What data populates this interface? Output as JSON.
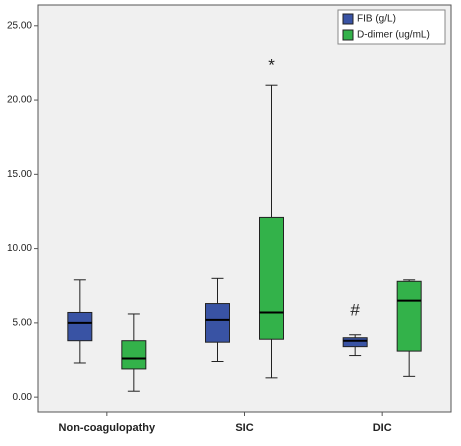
{
  "chart_data": {
    "type": "box",
    "categories": [
      "Non-coagulopathy",
      "SIC",
      "DIC"
    ],
    "series": [
      {
        "name": "FIB (g/L)",
        "color": "#3953a4",
        "boxes": [
          {
            "min": 2.3,
            "q1": 3.8,
            "median": 5.0,
            "q3": 5.7,
            "max": 7.9
          },
          {
            "min": 2.4,
            "q1": 3.7,
            "median": 5.2,
            "q3": 6.3,
            "max": 8.0
          },
          {
            "min": 2.8,
            "q1": 3.4,
            "median": 3.8,
            "q3": 4.0,
            "max": 4.2
          }
        ],
        "outliers": [
          null,
          null,
          {
            "value": 5.8,
            "label": "#"
          }
        ]
      },
      {
        "name": "D-dimer (ug/mL)",
        "color": "#33b24a",
        "boxes": [
          {
            "min": 0.4,
            "q1": 1.9,
            "median": 2.6,
            "q3": 3.8,
            "max": 5.6
          },
          {
            "min": 1.3,
            "q1": 3.9,
            "median": 5.7,
            "q3": 12.1,
            "max": 21.0
          },
          {
            "min": 1.4,
            "q1": 3.1,
            "median": 6.5,
            "q3": 7.8,
            "max": 7.9
          }
        ],
        "outliers": [
          null,
          {
            "value": 22.3,
            "label": "*"
          },
          null
        ]
      }
    ],
    "ylim": [
      -1,
      26.4
    ],
    "yticks": [
      {
        "value": 0,
        "label": "0.00"
      },
      {
        "value": 5,
        "label": "5.00"
      },
      {
        "value": 10,
        "label": "10.00"
      },
      {
        "value": 15,
        "label": "15.00"
      },
      {
        "value": 20,
        "label": "20.00"
      },
      {
        "value": 25,
        "label": "25.00"
      }
    ],
    "legend": "top-right"
  }
}
